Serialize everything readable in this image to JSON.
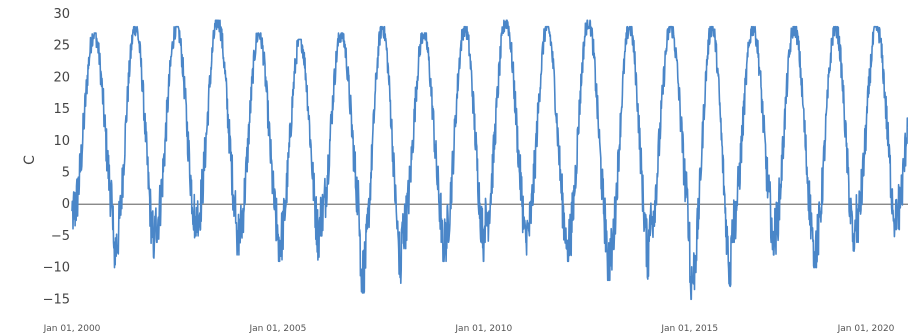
{
  "chart_data": {
    "type": "line",
    "ylabel": "C",
    "ylim": [
      -17,
      30
    ],
    "y_ticks": [
      "30",
      "25",
      "20",
      "15",
      "10",
      "5",
      "0",
      "−5",
      "−10",
      "−15"
    ],
    "y_tick_values": [
      30,
      25,
      20,
      15,
      10,
      5,
      0,
      -5,
      -10,
      -15
    ],
    "x_ticks": [
      "Jan 01, 2000",
      "Jan 01, 2005",
      "Jan 01, 2010",
      "Jan 01, 2015",
      "Jan 01, 2020"
    ],
    "x_tick_years": [
      2000,
      2005,
      2010,
      2015,
      2020
    ],
    "xlim_years": [
      2000.0,
      2020.3
    ],
    "grid": false,
    "zero_line": true,
    "series": [
      {
        "color": "#4a86c8",
        "summer_peaks_c": [
          27,
          28,
          28,
          29,
          27,
          26,
          27,
          28,
          27,
          28,
          29,
          28,
          29,
          28,
          28,
          28,
          28,
          28,
          28,
          28,
          28
        ],
        "winter_lows_c": [
          -4,
          -10,
          -6,
          -5,
          -8,
          -9,
          -5,
          -14,
          -7,
          -9,
          -6,
          -8,
          -9,
          -12,
          -6,
          -15,
          -6,
          -8,
          -10,
          -6,
          -4
        ]
      }
    ]
  },
  "colors": {
    "line": "#4a86c8",
    "zero_line": "#7a7a7a",
    "text": "#444444"
  }
}
